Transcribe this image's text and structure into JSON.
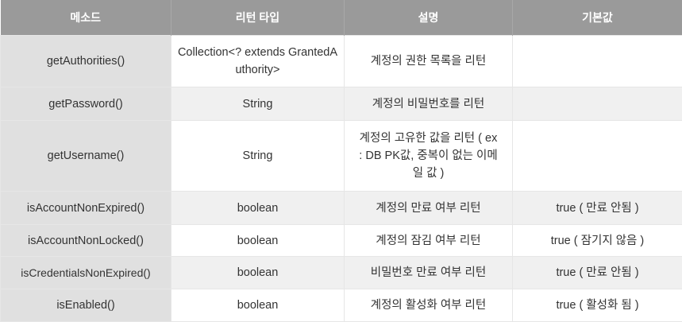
{
  "headers": [
    "메소드",
    "리턴 타입",
    "설명",
    "기본값"
  ],
  "rows": [
    {
      "method": "getAuthorities()",
      "type": "Collection<? extends GrantedAuthority>",
      "desc": "계정의 권한 목록을 리턴",
      "default": ""
    },
    {
      "method": "getPassword()",
      "type": "String",
      "desc": "계정의 비밀번호를 리턴",
      "default": ""
    },
    {
      "method": "getUsername()",
      "type": "String",
      "desc": "계정의 고유한 값을 리턴 ( ex : DB PK값, 중복이 없는 이메일 값 )",
      "default": ""
    },
    {
      "method": "isAccountNonExpired()",
      "type": "boolean",
      "desc": "계정의 만료 여부 리턴",
      "default": "true ( 만료 안됨 )"
    },
    {
      "method": "isAccountNonLocked()",
      "type": "boolean",
      "desc": "계정의 잠김 여부 리턴",
      "default": "true ( 잠기지 않음 )"
    },
    {
      "method": "isCredentialsNonExpired()",
      "type": "boolean",
      "desc": "비밀번호 만료 여부 리턴",
      "default": "true ( 만료 안됨 )"
    },
    {
      "method": "isEnabled()",
      "type": "boolean",
      "desc": "계정의 활성화 여부 리턴",
      "default": "true ( 활성화 됨 )"
    }
  ]
}
